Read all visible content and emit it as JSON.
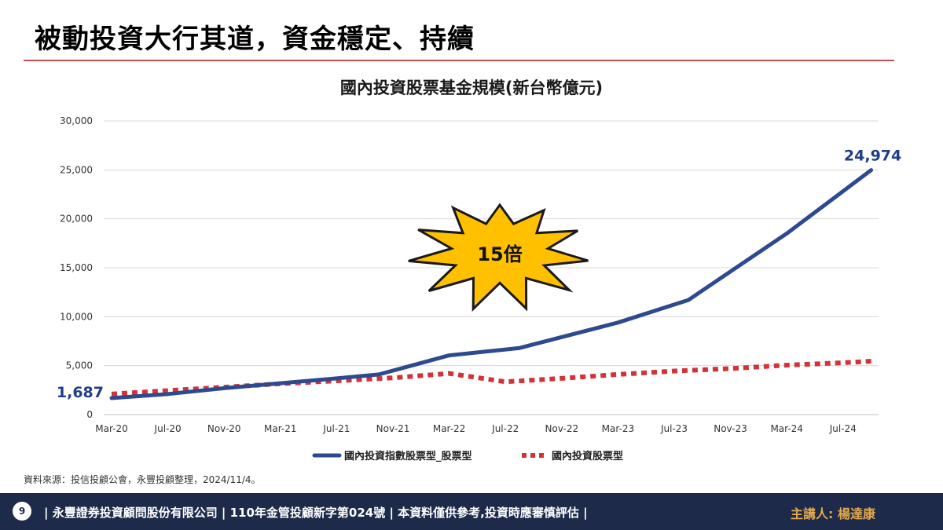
{
  "slide": {
    "title": "被動投資大行其道，資金穩定、持續",
    "source": "資料來源：投信投顧公會，永豐投顧整理，2024/11/4。"
  },
  "footer": {
    "page_number": "9",
    "text": "| 永豐證券投資顧問股份有限公司 | 110年金管投顧新字第024號 | 本資料僅供參考,投資時應審慎評估 |",
    "presenter": "主講人: 楊達康"
  },
  "colors": {
    "index_series": "#2e4a8f",
    "equity_series": "#d0343a",
    "burst_fill": "#ffc000",
    "label_text": "#1f3d8a",
    "grid": "#d9d9d9"
  },
  "chart_data": {
    "type": "line",
    "title": "國內投資股票基金規模(新台幣億元)",
    "xlabel": "",
    "ylabel": "",
    "ylim": [
      0,
      30000
    ],
    "yticks": [
      0,
      5000,
      10000,
      15000,
      20000,
      25000,
      30000
    ],
    "ytick_labels": [
      "0",
      "5,000",
      "10,000",
      "15,000",
      "20,000",
      "25,000",
      "30,000"
    ],
    "x_tick_labels": [
      "Mar-20",
      "Jul-20",
      "Nov-20",
      "Mar-21",
      "Jul-21",
      "Nov-21",
      "Mar-22",
      "Jul-22",
      "Nov-22",
      "Mar-23",
      "Jul-23",
      "Nov-23",
      "Mar-24",
      "Jul-24"
    ],
    "x_tick_months": [
      0,
      4,
      8,
      12,
      16,
      20,
      24,
      28,
      32,
      36,
      40,
      44,
      48,
      52
    ],
    "grid": "horizontal",
    "legend_position": "bottom",
    "series": [
      {
        "name": "國內投資指數股票型_股票型",
        "style": "solid",
        "points": [
          [
            0,
            1687
          ],
          [
            4,
            2100
          ],
          [
            8,
            2700
          ],
          [
            12,
            3200
          ],
          [
            16,
            3700
          ],
          [
            19,
            4100
          ],
          [
            24,
            6050
          ],
          [
            29,
            6800
          ],
          [
            36,
            9400
          ],
          [
            41,
            11700
          ],
          [
            48,
            18500
          ],
          [
            54,
            24974
          ]
        ]
      },
      {
        "name": "國內投資股票型",
        "style": "dotted",
        "points": [
          [
            0,
            2100
          ],
          [
            4,
            2450
          ],
          [
            8,
            2800
          ],
          [
            12,
            3150
          ],
          [
            16,
            3450
          ],
          [
            20,
            3750
          ],
          [
            24,
            4200
          ],
          [
            28,
            3350
          ],
          [
            32,
            3700
          ],
          [
            36,
            4100
          ],
          [
            40,
            4450
          ],
          [
            44,
            4700
          ],
          [
            48,
            5050
          ],
          [
            52,
            5300
          ],
          [
            54,
            5450
          ]
        ]
      }
    ],
    "annotations": {
      "start_value": "1,687",
      "end_value": "24,974",
      "burst_text": "15倍"
    }
  }
}
